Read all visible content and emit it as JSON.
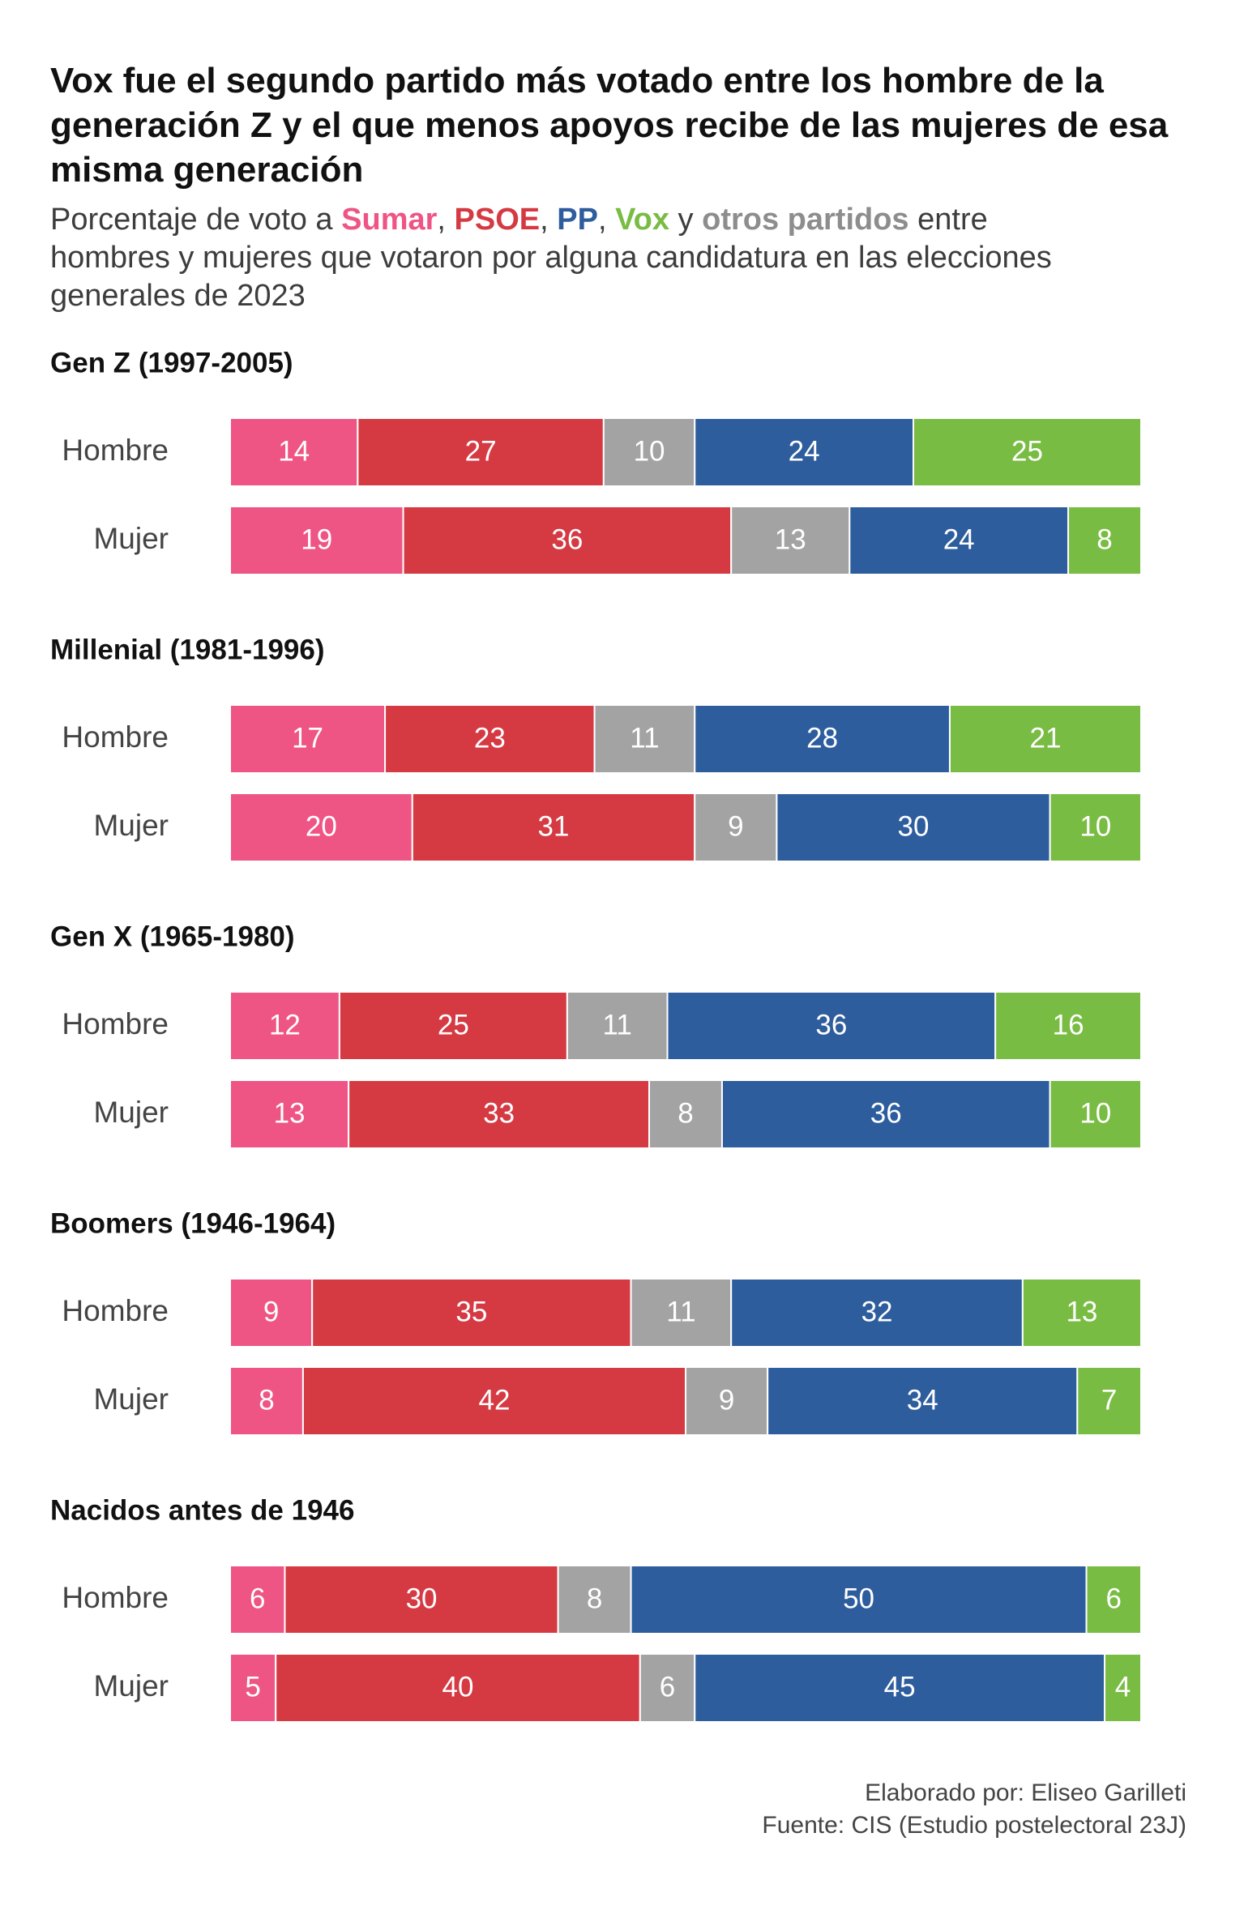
{
  "title": "Vox fue el segundo partido más votado entre los hombre de la generación Z y el que menos apoyos recibe de las mujeres de esa misma generación",
  "subtitle": {
    "prefix": "Porcentaje de voto a ",
    "sep1": ", ",
    "sep2": ", ",
    "sep3": ", ",
    "sep4": " y ",
    "suffix": " entre hombres y mujeres que votaron por alguna candidatura en las elecciones generales de 2023"
  },
  "legend": {
    "sumar": "Sumar",
    "psoe": "PSOE",
    "pp": "PP",
    "vox": "Vox",
    "otros": "otros partidos"
  },
  "footer": {
    "line1": "Elaborado por: Eliseo Garilleti",
    "line2": "Fuente: CIS (Estudio postelectoral 23J)"
  },
  "chart_data": {
    "type": "bar",
    "stacked": true,
    "orientation": "horizontal",
    "unit": "%",
    "series_order": [
      "Sumar",
      "PSOE",
      "otros partidos",
      "PP",
      "Vox"
    ],
    "colors": {
      "Sumar": "#ef5584",
      "PSOE": "#d53a43",
      "otros partidos": "#a3a3a3",
      "PP": "#2e5d9e",
      "Vox": "#79bc43"
    },
    "groups": [
      {
        "label": "Gen Z (1997-2005)",
        "rows": [
          {
            "label": "Hombre",
            "values": [
              14,
              27,
              10,
              24,
              25
            ]
          },
          {
            "label": "Mujer",
            "values": [
              19,
              36,
              13,
              24,
              8
            ]
          }
        ]
      },
      {
        "label": "Millenial (1981-1996)",
        "rows": [
          {
            "label": "Hombre",
            "values": [
              17,
              23,
              11,
              28,
              21
            ]
          },
          {
            "label": "Mujer",
            "values": [
              20,
              31,
              9,
              30,
              10
            ]
          }
        ]
      },
      {
        "label": "Gen X (1965-1980)",
        "rows": [
          {
            "label": "Hombre",
            "values": [
              12,
              25,
              11,
              36,
              16
            ]
          },
          {
            "label": "Mujer",
            "values": [
              13,
              33,
              8,
              36,
              10
            ]
          }
        ]
      },
      {
        "label": "Boomers (1946-1964)",
        "rows": [
          {
            "label": "Hombre",
            "values": [
              9,
              35,
              11,
              32,
              13
            ]
          },
          {
            "label": "Mujer",
            "values": [
              8,
              42,
              9,
              34,
              7
            ]
          }
        ]
      },
      {
        "label": "Nacidos antes de 1946",
        "rows": [
          {
            "label": "Hombre",
            "values": [
              6,
              30,
              8,
              50,
              6
            ]
          },
          {
            "label": "Mujer",
            "values": [
              5,
              40,
              6,
              45,
              4
            ]
          }
        ]
      }
    ]
  }
}
